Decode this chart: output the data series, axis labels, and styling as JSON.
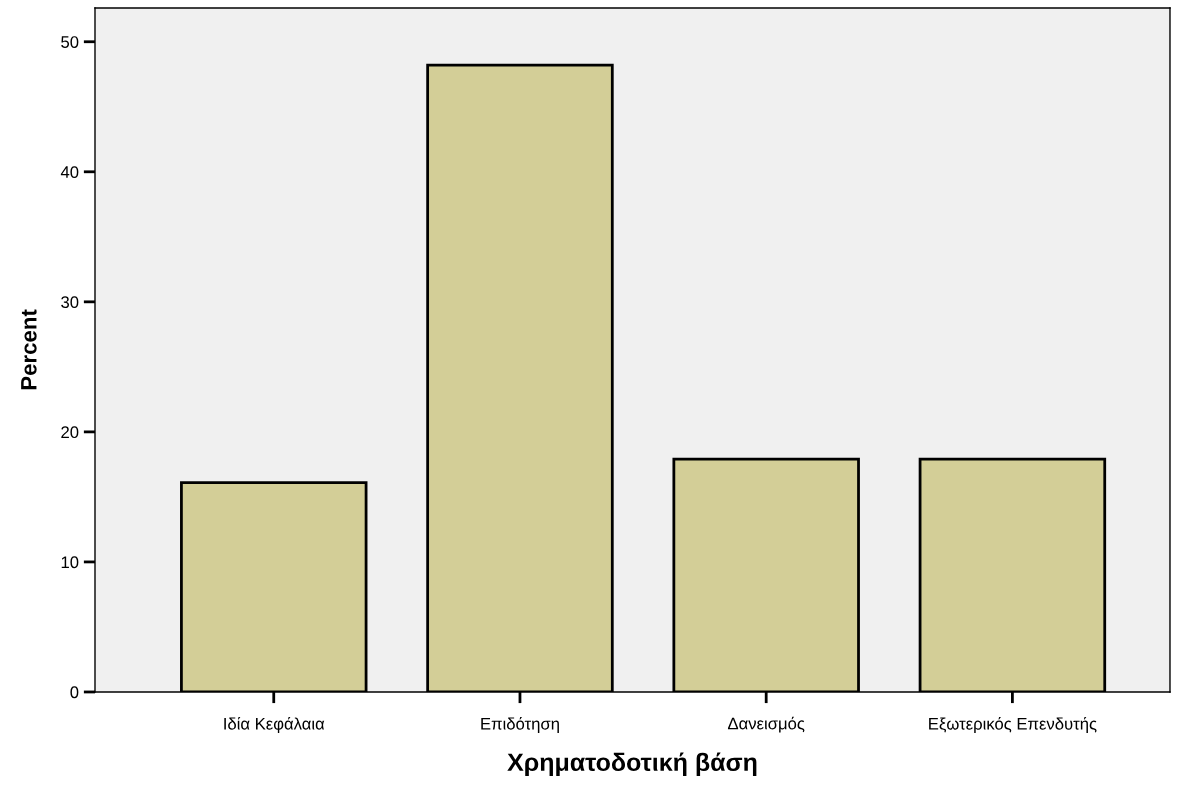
{
  "chart_data": {
    "type": "bar",
    "xlabel": "Χρηματοδοτική βάση",
    "ylabel": "Percent",
    "categories": [
      "Ιδία Κεφάλαια",
      "Επιδότηση",
      "Δανεισμός",
      "Εξωτερικός Επενδυτής"
    ],
    "values": [
      16.1,
      48.2,
      17.9,
      17.9
    ],
    "color": "#d3ce97",
    "ylim": [
      0,
      52.6
    ],
    "yticks": [
      0,
      10,
      20,
      30,
      40,
      50
    ],
    "grid": false,
    "legend": false
  }
}
